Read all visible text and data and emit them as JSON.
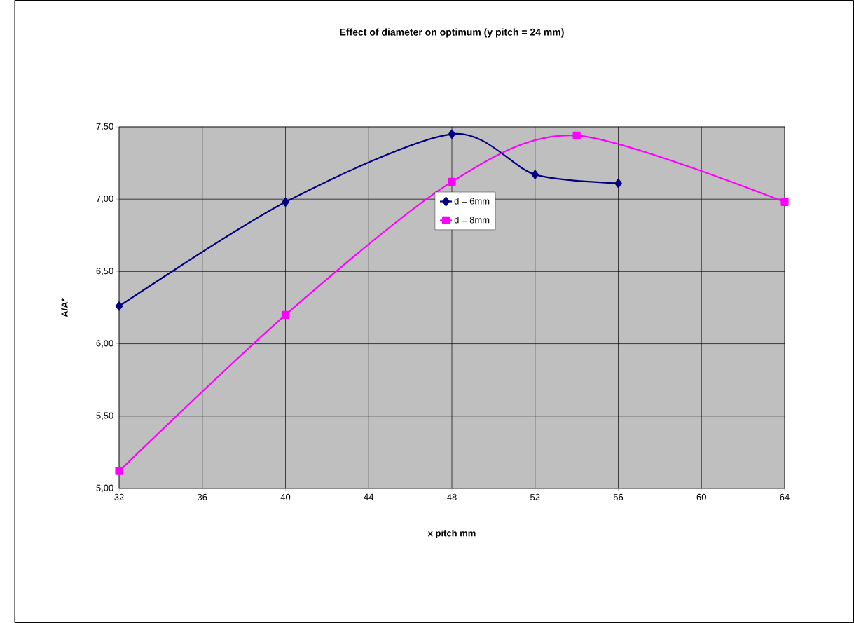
{
  "chart_data": {
    "type": "line",
    "title": "Effect of diameter on optimum (y pitch = 24 mm)",
    "xlabel": "x pitch mm",
    "ylabel": "A/A*",
    "series": [
      {
        "name": "d = 6mm",
        "color": "#000080",
        "marker": "diamond",
        "x": [
          32,
          40,
          48,
          52,
          56
        ],
        "values": [
          6.26,
          6.98,
          7.45,
          7.17,
          7.11
        ]
      },
      {
        "name": "d = 8mm",
        "color": "#ff00ff",
        "marker": "square",
        "x": [
          32,
          40,
          48,
          54,
          64
        ],
        "values": [
          5.12,
          6.2,
          7.12,
          7.44,
          6.98
        ]
      }
    ],
    "xlim": [
      32,
      64
    ],
    "xticks": [
      32,
      36,
      40,
      44,
      48,
      52,
      56,
      60,
      64
    ],
    "ylim": [
      5,
      7.5
    ],
    "yticks": [
      {
        "value": 5,
        "label": "5,00"
      },
      {
        "value": 5.5,
        "label": "5,50"
      },
      {
        "value": 6,
        "label": "6,00"
      },
      {
        "value": 6.5,
        "label": "6,50"
      },
      {
        "value": 7,
        "label": "7,00"
      },
      {
        "value": 7.5,
        "label": "7,50"
      }
    ],
    "grid": true,
    "legend": "top"
  }
}
